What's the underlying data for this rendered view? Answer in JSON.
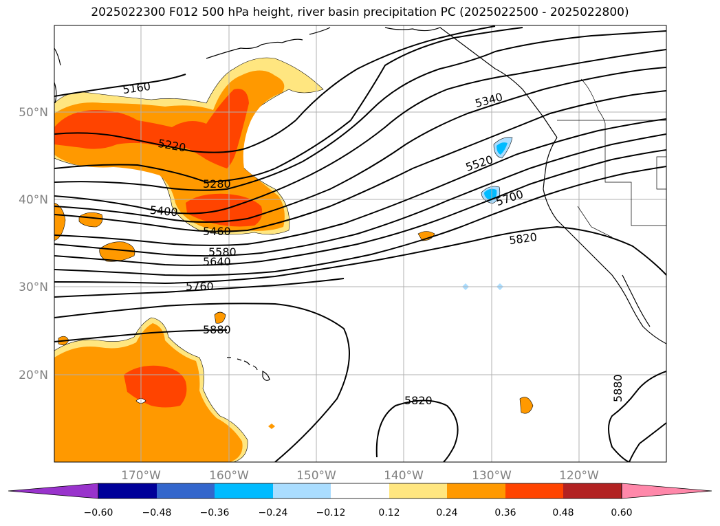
{
  "title": "2025022300 F012 500 hPa height, river basin precipitation PC (2025022500 - 2025022800)",
  "lat_labels": [
    "50°N",
    "40°N",
    "30°N",
    "20°N"
  ],
  "lon_labels": [
    "170°W",
    "160°W",
    "150°W",
    "140°W",
    "130°W",
    "120°W"
  ],
  "contour_labels": [
    "5160",
    "5220",
    "5280",
    "5340",
    "5400",
    "5460",
    "5520",
    "5580",
    "5640",
    "5700",
    "5760",
    "5820",
    "5820",
    "5880",
    "5880"
  ],
  "colorbar": {
    "tick_labels": [
      "−0.60",
      "−0.48",
      "−0.36",
      "−0.24",
      "−0.12",
      "0.12",
      "0.24",
      "0.36",
      "0.48",
      "0.60"
    ],
    "colors": [
      "#9933cc",
      "#000099",
      "#3366cc",
      "#00bbff",
      "#aaddff",
      "#ffffff",
      "#ffe680",
      "#ff9900",
      "#ff4400",
      "#b22222",
      "#ff88aa"
    ]
  },
  "colors": {
    "precip_light": "#ffe680",
    "precip_mid": "#ff9900",
    "precip_high": "#ff4400",
    "precip_neg": "#00bbff",
    "precip_neg_light": "#aaddff"
  }
}
